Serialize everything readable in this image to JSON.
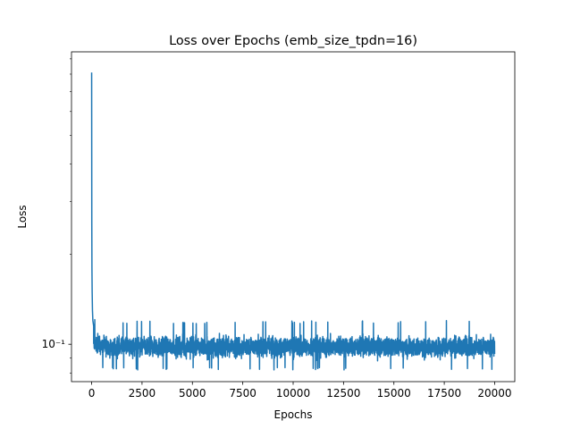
{
  "chart_data": {
    "type": "line",
    "title": "Loss over Epochs (emb_size_tpdn=16)",
    "xlabel": "Epochs",
    "ylabel": "Loss",
    "x_ticks": [
      0,
      2500,
      5000,
      7500,
      10000,
      12500,
      15000,
      17500,
      20000
    ],
    "x_tick_labels": [
      "0",
      "2500",
      "5000",
      "7500",
      "10000",
      "12500",
      "15000",
      "17500",
      "20000"
    ],
    "xlim": [
      -1000,
      21000
    ],
    "y_scale": "log",
    "ylim": [
      0.075,
      0.95
    ],
    "y_tick_values": [
      0.1
    ],
    "y_tick_labels": [
      "10⁻¹"
    ],
    "grid": false,
    "series": [
      {
        "color": "#1f77b4",
        "points": [
          [
            0,
            0.81
          ],
          [
            8,
            0.25
          ],
          [
            15,
            0.18
          ],
          [
            25,
            0.15
          ],
          [
            40,
            0.13
          ],
          [
            60,
            0.12
          ],
          [
            100,
            0.115
          ]
        ],
        "steady_band": {
          "x_start": 100,
          "x_end": 20000,
          "center": 0.098,
          "typical_low": 0.088,
          "typical_high": 0.108,
          "spike_high": 0.12,
          "spike_low": 0.082
        }
      }
    ]
  }
}
